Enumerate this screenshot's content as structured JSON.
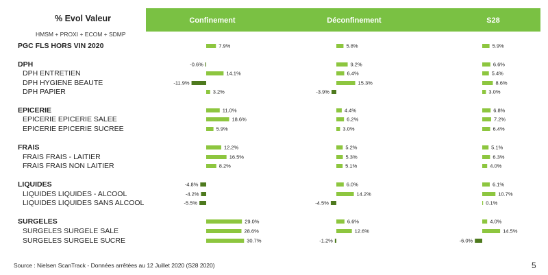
{
  "header": {
    "title": "% Evol Valeur",
    "subtitle": "HMSM + PROXI + ECOM + SDMP",
    "columns": [
      "Confinement",
      "Déconfinement",
      "S28"
    ],
    "header_color": "#7ac143"
  },
  "colors": {
    "positive": "#8dc63f",
    "negative": "#4e7a1e"
  },
  "footer": {
    "source": "Source : Nielsen ScanTrack - Données arrêtées au 12 Juillet 2020 (S28 2020)",
    "page": "5"
  },
  "chart_data": {
    "type": "bar",
    "orientation": "horizontal",
    "series": [
      {
        "name": "Confinement",
        "values": [
          7.9,
          -0.6,
          14.1,
          -11.9,
          3.2,
          11.0,
          18.6,
          5.9,
          12.2,
          16.5,
          8.2,
          -4.8,
          -4.2,
          -5.5,
          29.0,
          28.6,
          30.7
        ]
      },
      {
        "name": "Déconfinement",
        "values": [
          5.8,
          9.2,
          6.4,
          15.3,
          -3.9,
          4.4,
          6.2,
          3.0,
          5.2,
          5.3,
          5.1,
          6.0,
          14.2,
          -4.5,
          6.6,
          12.6,
          -1.2
        ]
      },
      {
        "name": "S28",
        "values": [
          5.9,
          6.6,
          5.4,
          8.6,
          3.0,
          6.8,
          7.2,
          6.4,
          5.1,
          6.3,
          4.0,
          6.1,
          10.7,
          0.1,
          4.0,
          14.5,
          -6.0
        ]
      }
    ],
    "rows": [
      {
        "label": "PGC FLS HORS VIN 2020",
        "group": true
      },
      {
        "label": "DPH",
        "group": true
      },
      {
        "label": "DPH ENTRETIEN",
        "group": false
      },
      {
        "label": "DPH HYGIENE BEAUTE",
        "group": false
      },
      {
        "label": "DPH PAPIER",
        "group": false
      },
      {
        "label": "EPICERIE",
        "group": true
      },
      {
        "label": "EPICERIE EPICERIE SALEE",
        "group": false
      },
      {
        "label": "EPICERIE EPICERIE SUCREE",
        "group": false
      },
      {
        "label": "FRAIS",
        "group": true
      },
      {
        "label": "FRAIS FRAIS - LAITIER",
        "group": false
      },
      {
        "label": "FRAIS FRAIS NON LAITIER",
        "group": false
      },
      {
        "label": "LIQUIDES",
        "group": true
      },
      {
        "label": "LIQUIDES LIQUIDES - ALCOOL",
        "group": false
      },
      {
        "label": "LIQUIDES LIQUIDES SANS ALCOOL",
        "group": false
      },
      {
        "label": "SURGELES",
        "group": true
      },
      {
        "label": "SURGELES SURGELE SALE",
        "group": false
      },
      {
        "label": "SURGELES SURGELE SUCRE",
        "group": false
      }
    ],
    "unit": "%"
  }
}
